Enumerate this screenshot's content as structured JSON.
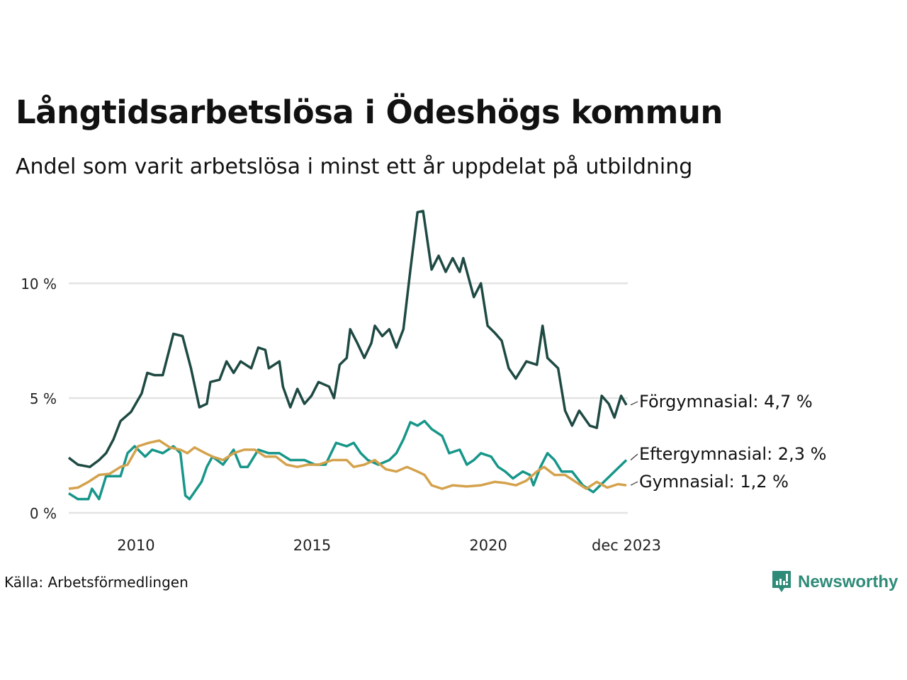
{
  "chart_data": {
    "type": "line",
    "title": "Långtidsarbetslösa i Ödeshögs kommun",
    "subtitle": "Andel som varit arbetslösa i minst ett år uppdelat på utbildning",
    "xlabel": "",
    "ylabel": "",
    "ylim": [
      0,
      13.5
    ],
    "xlim": [
      2008.09,
      2023.92
    ],
    "yticks": [
      {
        "v": 0,
        "label": "0 %"
      },
      {
        "v": 5,
        "label": "5 %"
      },
      {
        "v": 10,
        "label": "10 %"
      }
    ],
    "xticks": [
      {
        "v": 2010,
        "label": "2010"
      },
      {
        "v": 2015,
        "label": "2015"
      },
      {
        "v": 2020,
        "label": "2020"
      },
      {
        "v": 2023.92,
        "label": "dec 2023"
      }
    ],
    "grid": true,
    "series": [
      {
        "name": "Förgymnasial",
        "label": "Förgymnasial: 4,7 %",
        "color": "#1e4a43",
        "x": [
          2008.09,
          2008.35,
          2008.69,
          2008.95,
          2009.15,
          2009.36,
          2009.56,
          2009.86,
          2010.16,
          2010.32,
          2010.52,
          2010.76,
          2011.06,
          2011.32,
          2011.56,
          2011.8,
          2012.01,
          2012.11,
          2012.37,
          2012.57,
          2012.77,
          2012.97,
          2013.27,
          2013.47,
          2013.67,
          2013.77,
          2014.07,
          2014.17,
          2014.38,
          2014.58,
          2014.78,
          2014.98,
          2015.18,
          2015.48,
          2015.62,
          2015.78,
          2015.98,
          2016.08,
          2016.28,
          2016.48,
          2016.68,
          2016.78,
          2016.99,
          2017.19,
          2017.39,
          2017.59,
          2017.79,
          2017.99,
          2018.15,
          2018.39,
          2018.59,
          2018.79,
          2018.99,
          2019.19,
          2019.29,
          2019.59,
          2019.79,
          2019.98,
          2020.18,
          2020.38,
          2020.58,
          2020.78,
          2021.08,
          2021.38,
          2021.54,
          2021.68,
          2021.98,
          2022.18,
          2022.38,
          2022.58,
          2022.88,
          2023.08,
          2023.22,
          2023.42,
          2023.58,
          2023.77,
          2023.92
        ],
        "values": [
          2.4,
          2.1,
          2.0,
          2.3,
          2.6,
          3.2,
          4.0,
          4.4,
          5.2,
          6.1,
          6.0,
          6.0,
          7.8,
          7.7,
          6.3,
          4.6,
          4.75,
          5.7,
          5.8,
          6.6,
          6.1,
          6.6,
          6.3,
          7.2,
          7.1,
          6.3,
          6.6,
          5.5,
          4.6,
          5.4,
          4.75,
          5.1,
          5.7,
          5.5,
          5.0,
          6.45,
          6.75,
          8.0,
          7.4,
          6.75,
          7.4,
          8.15,
          7.7,
          8.0,
          7.2,
          8.0,
          10.6,
          13.1,
          13.15,
          10.6,
          11.2,
          10.5,
          11.1,
          10.5,
          11.1,
          9.4,
          10.0,
          8.15,
          7.85,
          7.5,
          6.3,
          5.85,
          6.6,
          6.45,
          8.15,
          6.75,
          6.3,
          4.45,
          3.8,
          4.45,
          3.8,
          3.7,
          5.1,
          4.75,
          4.15,
          5.1,
          4.7
        ]
      },
      {
        "name": "Eftergymnasial",
        "label": "Eftergymnasial: 2,3 %",
        "color": "#17968a",
        "x": [
          2008.09,
          2008.35,
          2008.65,
          2008.75,
          2008.95,
          2009.15,
          2009.56,
          2009.76,
          2009.96,
          2010.26,
          2010.46,
          2010.76,
          2011.06,
          2011.26,
          2011.4,
          2011.52,
          2011.86,
          2012.01,
          2012.17,
          2012.47,
          2012.77,
          2012.97,
          2013.17,
          2013.47,
          2013.77,
          2014.07,
          2014.38,
          2014.78,
          2015.08,
          2015.38,
          2015.68,
          2015.98,
          2016.18,
          2016.38,
          2016.58,
          2016.88,
          2017.19,
          2017.39,
          2017.59,
          2017.79,
          2017.99,
          2018.19,
          2018.39,
          2018.69,
          2018.89,
          2019.19,
          2019.39,
          2019.59,
          2019.79,
          2020.08,
          2020.28,
          2020.48,
          2020.7,
          2020.98,
          2021.18,
          2021.28,
          2021.48,
          2021.68,
          2021.88,
          2022.08,
          2022.38,
          2022.68,
          2022.98,
          2023.28,
          2023.58,
          2023.92
        ],
        "values": [
          0.85,
          0.6,
          0.6,
          1.05,
          0.6,
          1.6,
          1.6,
          2.6,
          2.9,
          2.45,
          2.75,
          2.6,
          2.9,
          2.6,
          0.75,
          0.6,
          1.35,
          2.0,
          2.45,
          2.1,
          2.75,
          2.0,
          2.0,
          2.75,
          2.6,
          2.6,
          2.3,
          2.3,
          2.1,
          2.1,
          3.05,
          2.9,
          3.05,
          2.6,
          2.3,
          2.1,
          2.3,
          2.6,
          3.2,
          3.95,
          3.8,
          4.0,
          3.65,
          3.35,
          2.6,
          2.75,
          2.1,
          2.3,
          2.6,
          2.45,
          2.0,
          1.8,
          1.5,
          1.8,
          1.65,
          1.2,
          2.0,
          2.6,
          2.3,
          1.8,
          1.8,
          1.2,
          0.9,
          1.35,
          1.8,
          2.3
        ]
      },
      {
        "name": "Gymnasial",
        "label": "Gymnasial: 1,2 %",
        "color": "#d4a24c",
        "x": [
          2008.09,
          2008.35,
          2008.65,
          2008.95,
          2009.25,
          2009.56,
          2009.76,
          2010.06,
          2010.36,
          2010.66,
          2010.96,
          2011.26,
          2011.46,
          2011.66,
          2011.97,
          2012.17,
          2012.47,
          2012.77,
          2013.07,
          2013.37,
          2013.67,
          2013.97,
          2014.27,
          2014.58,
          2014.88,
          2015.18,
          2015.58,
          2015.98,
          2016.18,
          2016.48,
          2016.78,
          2017.09,
          2017.39,
          2017.69,
          2017.99,
          2018.19,
          2018.39,
          2018.69,
          2018.99,
          2019.39,
          2019.79,
          2020.18,
          2020.48,
          2020.78,
          2021.08,
          2021.38,
          2021.58,
          2021.88,
          2022.18,
          2022.48,
          2022.78,
          2023.08,
          2023.38,
          2023.68,
          2023.92
        ],
        "values": [
          1.05,
          1.1,
          1.35,
          1.65,
          1.7,
          2.0,
          2.1,
          2.9,
          3.05,
          3.15,
          2.85,
          2.75,
          2.6,
          2.85,
          2.6,
          2.45,
          2.3,
          2.6,
          2.75,
          2.75,
          2.45,
          2.45,
          2.1,
          2.0,
          2.1,
          2.1,
          2.3,
          2.3,
          2.0,
          2.1,
          2.3,
          1.9,
          1.8,
          2.0,
          1.8,
          1.65,
          1.2,
          1.05,
          1.2,
          1.15,
          1.2,
          1.35,
          1.3,
          1.2,
          1.4,
          1.8,
          2.0,
          1.65,
          1.65,
          1.35,
          1.05,
          1.35,
          1.1,
          1.25,
          1.2
        ]
      }
    ]
  },
  "source": "Källa: Arbetsförmedlingen",
  "logo": "Newsworthy"
}
